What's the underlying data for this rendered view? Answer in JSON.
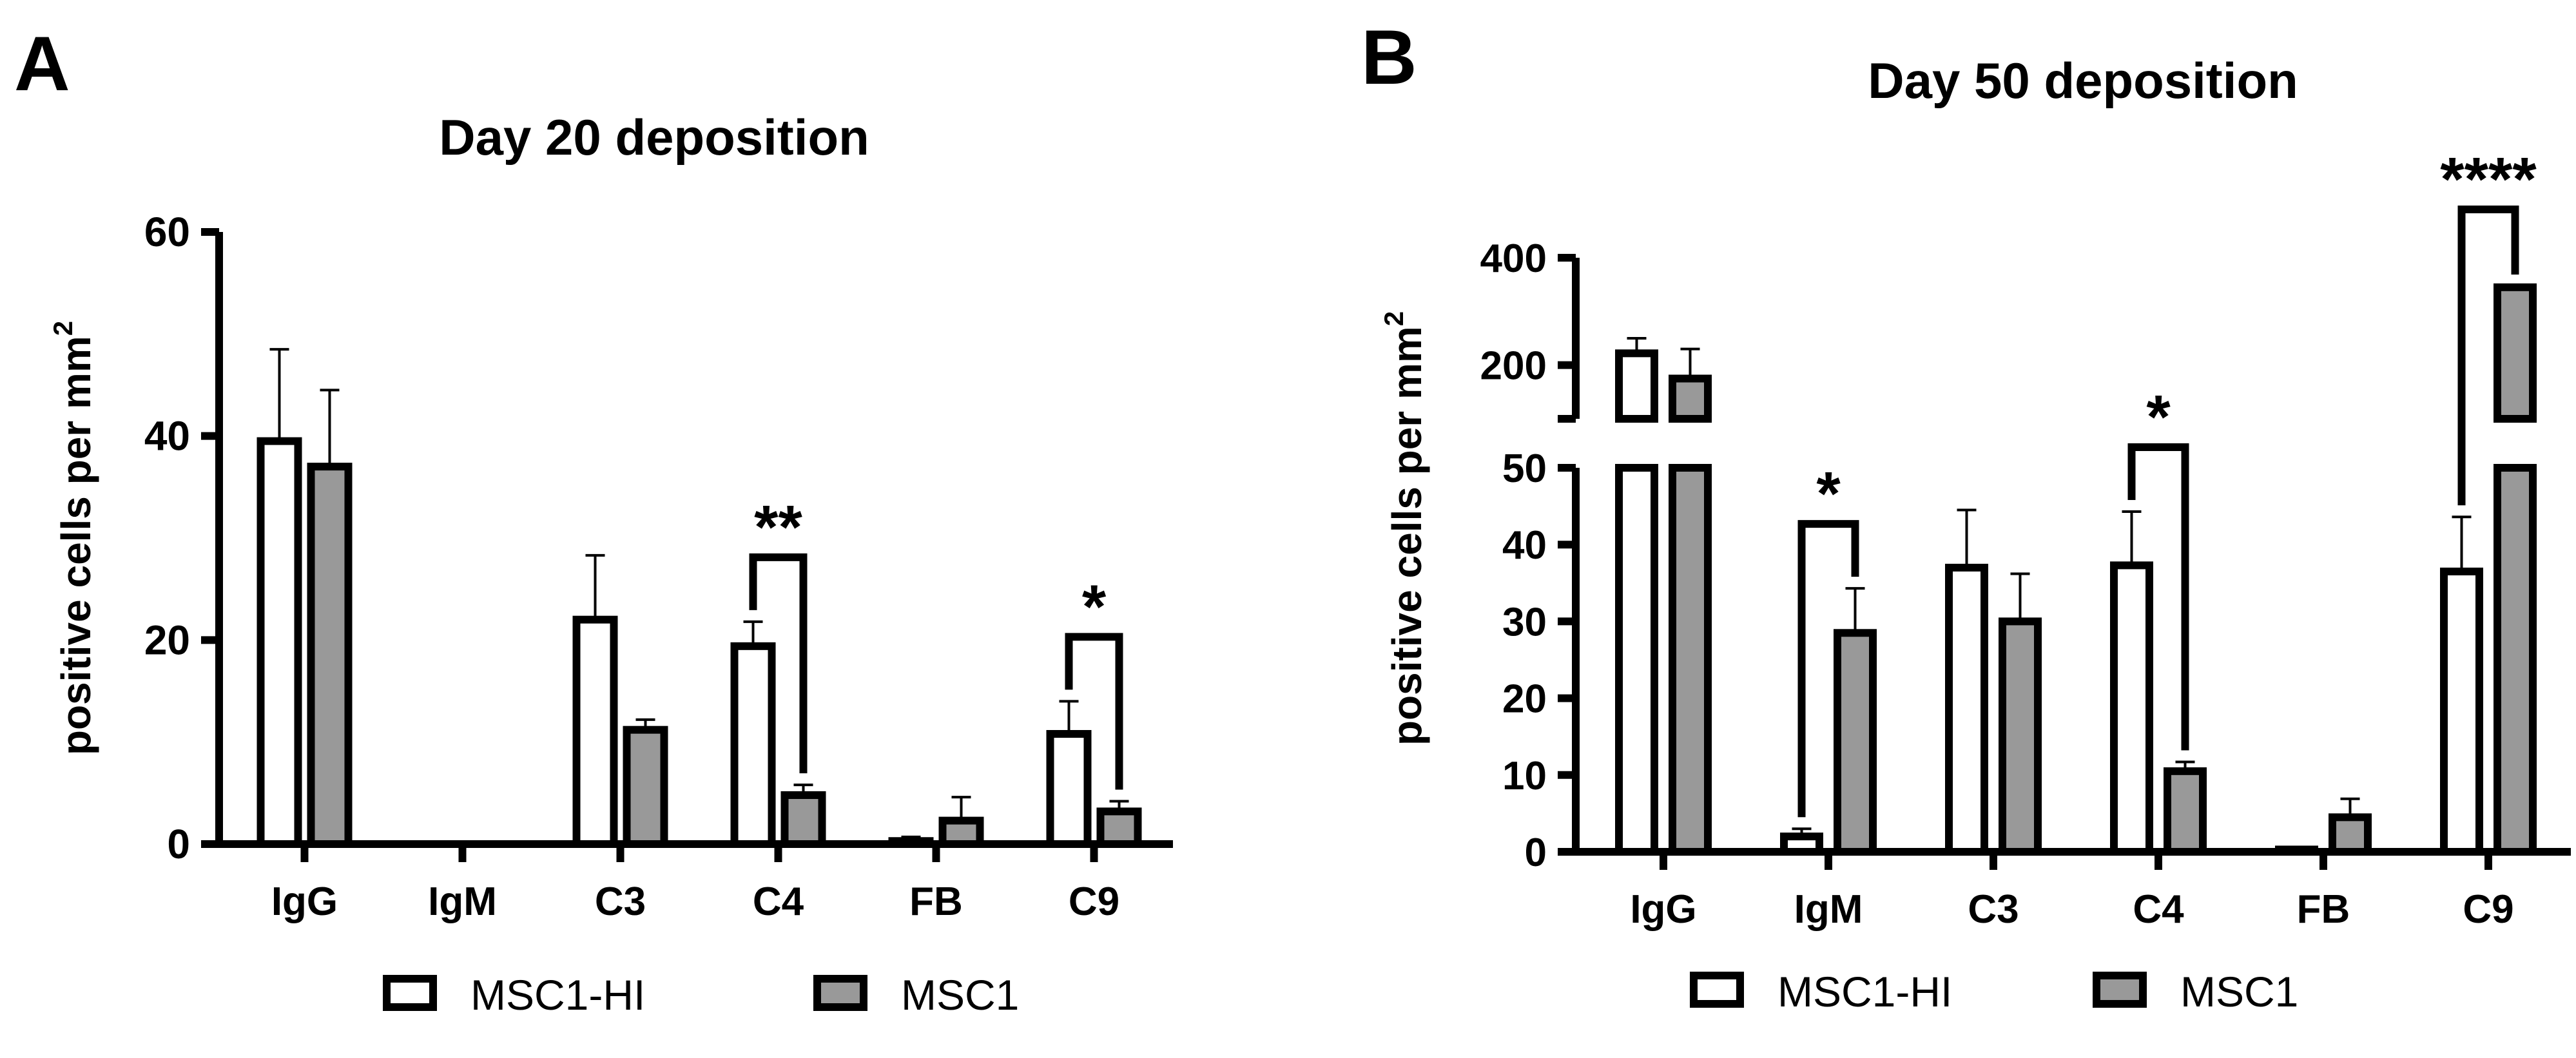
{
  "chart_data": [
    {
      "panel_label": "A",
      "type": "bar",
      "title": "Day 20 deposition",
      "xlabel": "",
      "ylabel": "positive cells per mm",
      "ylabel_sup": "2",
      "ylim": [
        0,
        60
      ],
      "yticks": [
        0,
        20,
        40,
        60
      ],
      "categories": [
        "IgG",
        "IgM",
        "C3",
        "C4",
        "FB",
        "C9"
      ],
      "series": [
        {
          "name": "MSC1-HI",
          "color": "#ffffff",
          "values": [
            39.5,
            0,
            22,
            19.4,
            0.3,
            10.8
          ],
          "errors": [
            9,
            0,
            6.3,
            2.4,
            0.4,
            3.2
          ]
        },
        {
          "name": "MSC1",
          "color": "#999999",
          "values": [
            37,
            0,
            11.2,
            4.8,
            2.3,
            3.2
          ],
          "errors": [
            7.5,
            0,
            1,
            1,
            2.3,
            1
          ]
        }
      ],
      "significance": [
        {
          "category": "C4",
          "label": "**"
        },
        {
          "category": "C9",
          "label": "*"
        }
      ],
      "legend": [
        "MSC1-HI",
        "MSC1"
      ],
      "legend_position": "bottom"
    },
    {
      "panel_label": "B",
      "type": "bar",
      "title": "Day 50 deposition",
      "xlabel": "",
      "ylabel": "positive cells per mm",
      "ylabel_sup": "2",
      "axis_break": true,
      "ylim_lower": [
        0,
        50
      ],
      "yticks_lower": [
        0,
        10,
        20,
        30,
        40,
        50
      ],
      "ylim_upper": [
        100,
        400
      ],
      "yticks_upper": [
        200,
        400
      ],
      "categories": [
        "IgG",
        "IgM",
        "C3",
        "C4",
        "FB",
        "C9"
      ],
      "series": [
        {
          "name": "MSC1-HI",
          "color": "#ffffff",
          "values": [
            222,
            2,
            37,
            37.3,
            0.3,
            36.5
          ],
          "errors": [
            28,
            1,
            7.5,
            7,
            0.2,
            7.1
          ]
        },
        {
          "name": "MSC1",
          "color": "#999999",
          "values": [
            175,
            28.5,
            30,
            10.5,
            4.5,
            345
          ],
          "errors": [
            55,
            5.8,
            6.2,
            1.2,
            2.4,
            2
          ]
        }
      ],
      "significance": [
        {
          "category": "IgM",
          "label": "*"
        },
        {
          "category": "C4",
          "label": "*"
        },
        {
          "category": "C9",
          "label": "****"
        }
      ],
      "legend": [
        "MSC1-HI",
        "MSC1"
      ],
      "legend_position": "bottom"
    }
  ]
}
